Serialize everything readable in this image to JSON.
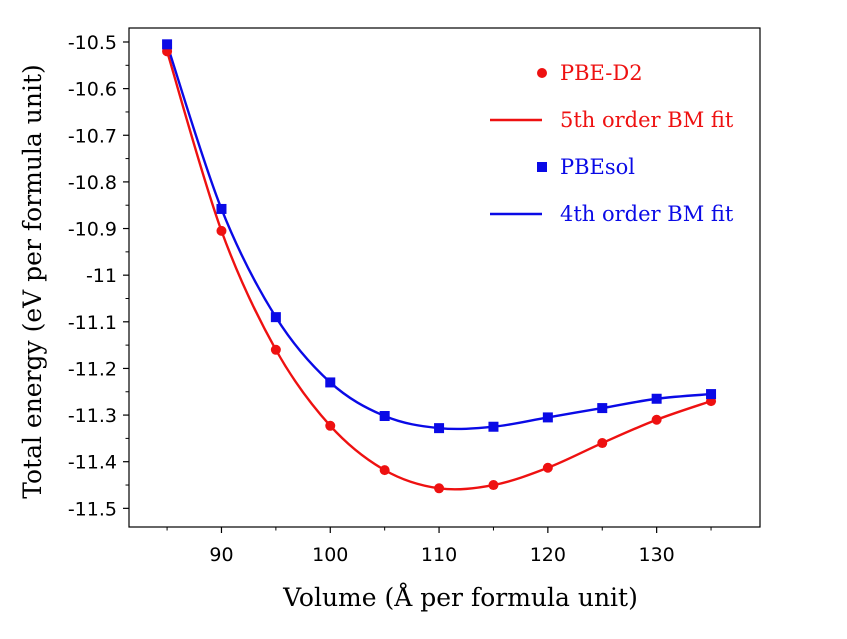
{
  "chart_data": {
    "type": "scatter",
    "xlabel": "Volume (Å per formula unit)",
    "ylabel": "Total energy (eV per formula unit)",
    "xlim": [
      81.5,
      139.5
    ],
    "ylim": [
      -11.54,
      -10.47
    ],
    "xticks": [
      90,
      100,
      110,
      120,
      130
    ],
    "xtick_labels": [
      "90",
      "100",
      "110",
      "120",
      "130"
    ],
    "yticks": [
      -10.5,
      -10.6,
      -10.7,
      -10.8,
      -10.9,
      -11.0,
      -11.1,
      -11.2,
      -11.3,
      -11.4,
      -11.5
    ],
    "ytick_labels": [
      "-10.5",
      "-10.6",
      "-10.7",
      "-10.8",
      "-10.9",
      "-11",
      "-11.1",
      "-11.2",
      "-11.3",
      "-11.4",
      "-11.5"
    ],
    "legend_position": "top-right",
    "series": [
      {
        "name": "PBE-D2",
        "fit_name": "5th order BM fit",
        "color": "#ee1111",
        "marker": "circle",
        "x": [
          85,
          90,
          95,
          100,
          105,
          110,
          115,
          120,
          125,
          130,
          135
        ],
        "y": [
          -10.52,
          -10.905,
          -11.16,
          -11.323,
          -11.418,
          -11.457,
          -11.45,
          -11.413,
          -11.36,
          -11.31,
          -11.27
        ]
      },
      {
        "name": "PBEsol",
        "fit_name": "4th order BM fit",
        "color": "#0a0ae6",
        "marker": "square",
        "x": [
          85,
          90,
          95,
          100,
          105,
          110,
          115,
          120,
          125,
          130,
          135
        ],
        "y": [
          -10.505,
          -10.858,
          -11.09,
          -11.23,
          -11.302,
          -11.328,
          -11.325,
          -11.305,
          -11.285,
          -11.265,
          -11.255
        ]
      }
    ]
  }
}
